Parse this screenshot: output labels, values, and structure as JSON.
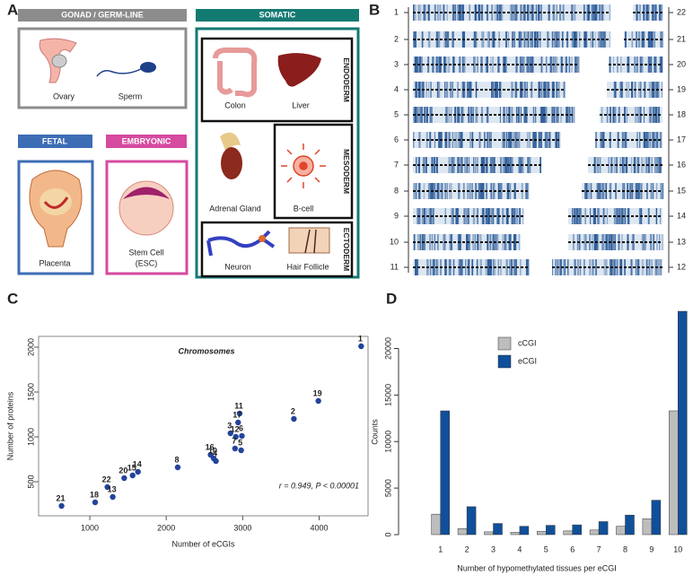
{
  "panel_labels": [
    "A",
    "B",
    "C",
    "D"
  ],
  "diagram": {
    "germline": {
      "title": "GONAD / GERM-LINE",
      "items": [
        "Ovary",
        "Sperm"
      ]
    },
    "somatic": {
      "title": "SOMATIC",
      "endoderm": {
        "label": "ENDODERM",
        "items": [
          "Colon",
          "Liver"
        ]
      },
      "mesoderm": {
        "label": "MESODERM",
        "items": [
          "Adrenal Gland",
          "B-cell"
        ]
      },
      "ectoderm": {
        "label": "ECTODERM",
        "items": [
          "Neuron",
          "Hair Follicle"
        ]
      }
    },
    "fetal": {
      "title": "FETAL",
      "items": [
        "Placenta"
      ]
    },
    "embryonic": {
      "title": "EMBRYONIC",
      "items": [
        "Stem Cell",
        "(ESC)"
      ]
    }
  },
  "karyogram": {
    "left": [
      "1",
      "2",
      "3",
      "4",
      "5",
      "6",
      "7",
      "8",
      "9",
      "10",
      "11"
    ],
    "right": [
      "22",
      "21",
      "20",
      "19",
      "18",
      "17",
      "16",
      "15",
      "14",
      "13",
      "12"
    ]
  },
  "chart_data": [
    {
      "type": "scatter",
      "x_label": "Number of eCGIs",
      "y_label": "Number of proteins",
      "annotations": [
        "Chromosomes",
        "r = 0.949, P < 0.00001"
      ],
      "point_labels": [
        "1",
        "19",
        "2",
        "11",
        "17",
        "3",
        "12",
        "6",
        "5",
        "7",
        "16",
        "10",
        "4",
        "8",
        "14",
        "15",
        "20",
        "22",
        "13",
        "18",
        "21"
      ],
      "x": [
        4550,
        3990,
        3670,
        2960,
        2940,
        2840,
        2910,
        2990,
        2980,
        2900,
        2580,
        2620,
        2650,
        2150,
        1630,
        1560,
        1450,
        1230,
        1300,
        1070,
        630
      ],
      "values": [
        2010,
        1400,
        1200,
        1260,
        1160,
        1040,
        1000,
        1010,
        850,
        870,
        800,
        760,
        730,
        660,
        610,
        570,
        540,
        440,
        330,
        270,
        230
      ],
      "color": "#23449a",
      "xlim": [
        330,
        4640
      ],
      "ylim": [
        120,
        2120
      ],
      "xticks": [
        1000,
        2000,
        3000,
        4000
      ],
      "yticks": [
        500,
        1000,
        1500,
        2000
      ],
      "grid": false
    },
    {
      "type": "bar",
      "x_label": "Number of hypomethylated tissues per eCGI",
      "y_label": "Counts",
      "categories": [
        "1",
        "2",
        "3",
        "4",
        "5",
        "6",
        "7",
        "8",
        "9",
        "10"
      ],
      "series": [
        {
          "name": "cCGI",
          "color": "#bdbdbd",
          "values": [
            2200,
            650,
            300,
            250,
            350,
            400,
            500,
            900,
            1700,
            13300
          ]
        },
        {
          "name": "eCGI",
          "color": "#10509a",
          "values": [
            13300,
            3000,
            1200,
            900,
            1000,
            1050,
            1400,
            2100,
            3700,
            24000
          ]
        }
      ],
      "ylim": [
        0,
        24000
      ],
      "yticks": [
        0,
        5000,
        10000,
        15000,
        20000
      ],
      "grid": false,
      "legend": "upper-left"
    }
  ]
}
